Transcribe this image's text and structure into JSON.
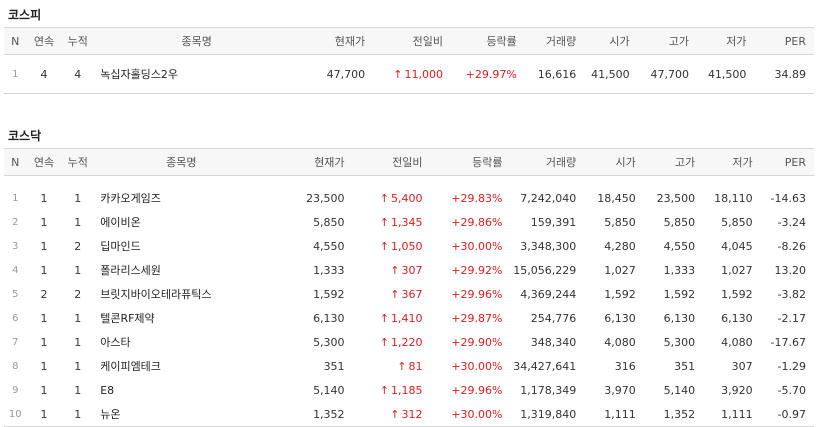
{
  "kospi": {
    "title": "코스피",
    "columns": [
      "N",
      "연속",
      "누적",
      "종목명",
      "현재가",
      "전일비",
      "등락률",
      "거래량",
      "시가",
      "고가",
      "저가",
      "PER"
    ],
    "rows": [
      {
        "n": "1",
        "streak": "4",
        "cum": "4",
        "name": "녹십자홀딩스2우",
        "price": "47,700",
        "change": "11,000",
        "rate": "+29.97%",
        "volume": "16,616",
        "open": "41,500",
        "high": "47,700",
        "low": "41,500",
        "per": "34.89"
      }
    ]
  },
  "kosdaq": {
    "title": "코스닥",
    "columns": [
      "N",
      "연속",
      "누적",
      "종목명",
      "현재가",
      "전일비",
      "등락률",
      "거래량",
      "시가",
      "고가",
      "저가",
      "PER"
    ],
    "rows": [
      {
        "n": "1",
        "streak": "1",
        "cum": "1",
        "name": "카카오게임즈",
        "price": "23,500",
        "change": "5,400",
        "rate": "+29.83%",
        "volume": "7,242,040",
        "open": "18,450",
        "high": "23,500",
        "low": "18,110",
        "per": "-14.63"
      },
      {
        "n": "2",
        "streak": "1",
        "cum": "1",
        "name": "에이비온",
        "price": "5,850",
        "change": "1,345",
        "rate": "+29.86%",
        "volume": "159,391",
        "open": "5,850",
        "high": "5,850",
        "low": "5,850",
        "per": "-3.24"
      },
      {
        "n": "3",
        "streak": "1",
        "cum": "2",
        "name": "딥마인드",
        "price": "4,550",
        "change": "1,050",
        "rate": "+30.00%",
        "volume": "3,348,300",
        "open": "4,280",
        "high": "4,550",
        "low": "4,045",
        "per": "-8.26"
      },
      {
        "n": "4",
        "streak": "1",
        "cum": "1",
        "name": "폴라리스세원",
        "price": "1,333",
        "change": "307",
        "rate": "+29.92%",
        "volume": "15,056,229",
        "open": "1,027",
        "high": "1,333",
        "low": "1,027",
        "per": "13.20"
      },
      {
        "n": "5",
        "streak": "2",
        "cum": "2",
        "name": "브릿지바이오테라퓨틱스",
        "price": "1,592",
        "change": "367",
        "rate": "+29.96%",
        "volume": "4,369,244",
        "open": "1,592",
        "high": "1,592",
        "low": "1,592",
        "per": "-3.82"
      },
      {
        "n": "6",
        "streak": "1",
        "cum": "1",
        "name": "텔콘RF제약",
        "price": "6,130",
        "change": "1,410",
        "rate": "+29.87%",
        "volume": "254,776",
        "open": "6,130",
        "high": "6,130",
        "low": "6,130",
        "per": "-2.17"
      },
      {
        "n": "7",
        "streak": "1",
        "cum": "1",
        "name": "아스타",
        "price": "5,300",
        "change": "1,220",
        "rate": "+29.90%",
        "volume": "348,340",
        "open": "4,080",
        "high": "5,300",
        "low": "4,080",
        "per": "-17.67"
      },
      {
        "n": "8",
        "streak": "1",
        "cum": "1",
        "name": "케이피엠테크",
        "price": "351",
        "change": "81",
        "rate": "+30.00%",
        "volume": "34,427,641",
        "open": "316",
        "high": "351",
        "low": "307",
        "per": "-1.29"
      },
      {
        "n": "9",
        "streak": "1",
        "cum": "1",
        "name": "E8",
        "price": "5,140",
        "change": "1,185",
        "rate": "+29.96%",
        "volume": "1,178,349",
        "open": "3,970",
        "high": "5,140",
        "low": "3,920",
        "per": "-5.70"
      },
      {
        "n": "10",
        "streak": "1",
        "cum": "1",
        "name": "뉴온",
        "price": "1,352",
        "change": "312",
        "rate": "+30.00%",
        "volume": "1,319,840",
        "open": "1,111",
        "high": "1,352",
        "low": "1,111",
        "per": "-0.97"
      }
    ]
  },
  "icons": {
    "up_arrow": "up-arrow-icon",
    "up_color": "#d81e1e"
  }
}
